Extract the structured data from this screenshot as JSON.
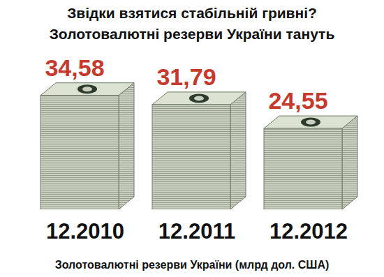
{
  "chart_data": {
    "type": "bar",
    "title": "Звідки взятися стабільній гривні?",
    "subtitle": "Золотовалютні резерви України тануть",
    "x_label": "Золотовалютні резерви України (млрд дол. США)",
    "categories": [
      "12.2010",
      "12.2011",
      "12.2012"
    ],
    "values": [
      34.58,
      31.79,
      24.55
    ],
    "value_labels": [
      "34,58",
      "31,79",
      "24,55"
    ],
    "color": "#c9d0c0",
    "ylim": [
      0,
      36
    ],
    "data_labels": true,
    "tick_labels": "x",
    "grid": false
  }
}
